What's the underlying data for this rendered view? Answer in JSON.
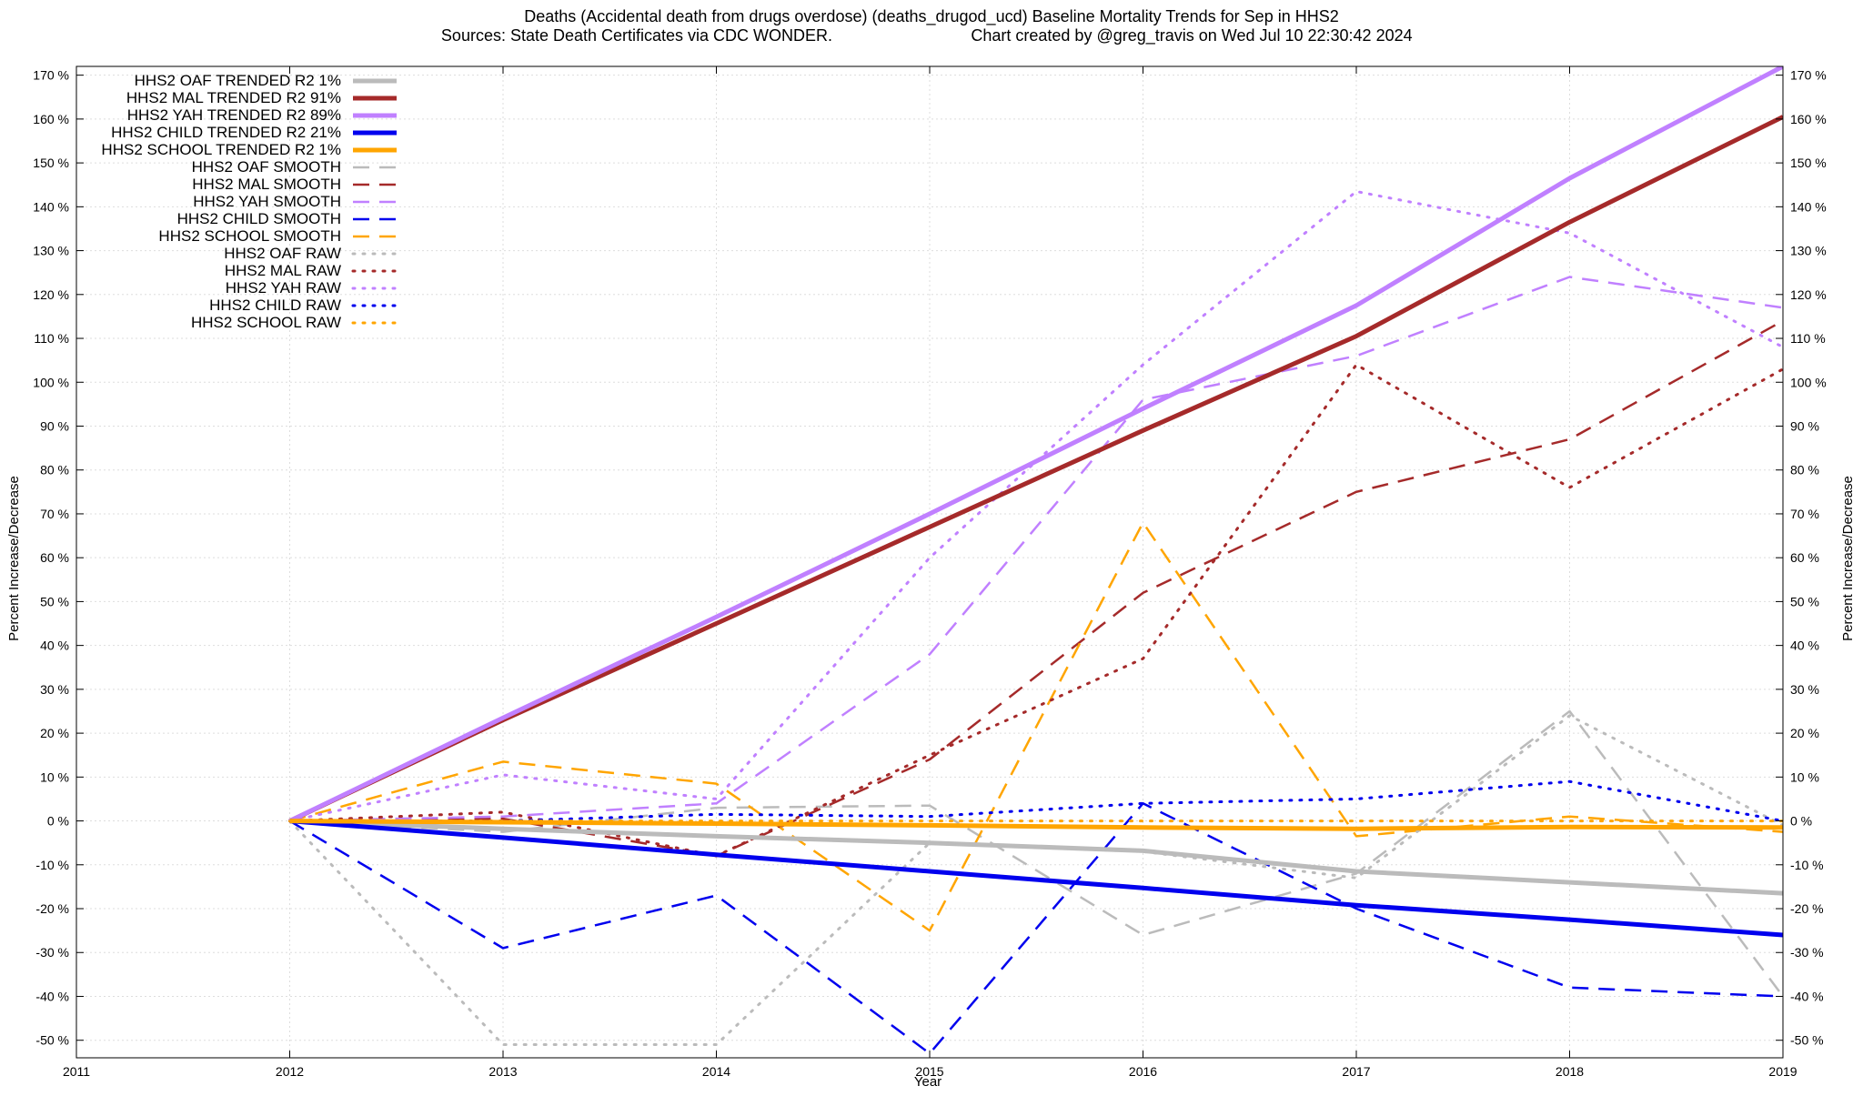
{
  "chart_data": {
    "type": "line",
    "title": "Deaths (Accidental death from drugs overdose) (deaths_drugod_ucd)  Baseline Mortality Trends for Sep in HHS2",
    "subtitle_left": "Sources: State Death Certificates via CDC WONDER.",
    "subtitle_right": "Chart created by @greg_travis on Wed Jul 10 22:30:42 2024",
    "xlabel": "Year",
    "ylabel_left": "Percent Increase/Decrease",
    "ylabel_right": "Percent Increase/Decrease",
    "xlim": [
      2011,
      2019
    ],
    "ylim": [
      -54,
      172
    ],
    "x_ticks": [
      {
        "value": 2011,
        "label": "2011"
      },
      {
        "value": 2012,
        "label": "2012"
      },
      {
        "value": 2013,
        "label": "2013"
      },
      {
        "value": 2014,
        "label": "2014"
      },
      {
        "value": 2015,
        "label": "2015"
      },
      {
        "value": 2016,
        "label": "2016"
      },
      {
        "value": 2017,
        "label": "2017"
      },
      {
        "value": 2018,
        "label": "2018"
      },
      {
        "value": 2019,
        "label": "2019"
      }
    ],
    "y_ticks": [
      {
        "value": 170,
        "label": "170 %"
      },
      {
        "value": 160,
        "label": "160 %"
      },
      {
        "value": 150,
        "label": "150 %"
      },
      {
        "value": 140,
        "label": "140 %"
      },
      {
        "value": 130,
        "label": "130 %"
      },
      {
        "value": 120,
        "label": "120 %"
      },
      {
        "value": 110,
        "label": "110 %"
      },
      {
        "value": 100,
        "label": "100 %"
      },
      {
        "value": 90,
        "label": "90 %"
      },
      {
        "value": 80,
        "label": "80 %"
      },
      {
        "value": 70,
        "label": "70 %"
      },
      {
        "value": 60,
        "label": "60 %"
      },
      {
        "value": 50,
        "label": "50 %"
      },
      {
        "value": 40,
        "label": "40 %"
      },
      {
        "value": 30,
        "label": "30 %"
      },
      {
        "value": 20,
        "label": "20 %"
      },
      {
        "value": 10,
        "label": "10 %"
      },
      {
        "value": 0,
        "label": "0 %"
      },
      {
        "value": -10,
        "label": "-10 %"
      },
      {
        "value": -20,
        "label": "-20 %"
      },
      {
        "value": -30,
        "label": "-30 %"
      },
      {
        "value": -40,
        "label": "-40 %"
      },
      {
        "value": -50,
        "label": "-50 %"
      }
    ],
    "grid": true,
    "legend_position": "top-left",
    "series": [
      {
        "name": "HHS2 OAF TRENDED R2  1%",
        "style": "trend",
        "color": "#bbbbbb",
        "x": [
          2012,
          2013,
          2014,
          2015,
          2016,
          2017,
          2018,
          2019
        ],
        "values": [
          0,
          -1.8,
          -3.5,
          -5,
          -6.8,
          -11.5,
          -14,
          -16.5
        ]
      },
      {
        "name": "HHS2 MAL TRENDED R2  91%",
        "style": "trend",
        "color": "#a52a2a",
        "x": [
          2012,
          2013,
          2014,
          2015,
          2016,
          2017,
          2018,
          2019
        ],
        "values": [
          0,
          23,
          45,
          67,
          89,
          110.5,
          136.5,
          160.5
        ]
      },
      {
        "name": "HHS2 YAH TRENDED R2  89%",
        "style": "trend",
        "color": "#c080ff",
        "x": [
          2012,
          2013,
          2014,
          2015,
          2016,
          2017,
          2018,
          2019
        ],
        "values": [
          0,
          23.5,
          46.5,
          70,
          94,
          117.5,
          146.5,
          172
        ]
      },
      {
        "name": "HHS2 CHILD TRENDED R2  21%",
        "style": "trend",
        "color": "#0000ee",
        "x": [
          2012,
          2013,
          2014,
          2015,
          2016,
          2017,
          2018,
          2019
        ],
        "values": [
          0,
          -3.8,
          -7.7,
          -11.5,
          -15.3,
          -19.2,
          -22.5,
          -26
        ]
      },
      {
        "name": "HHS2 SCHOOL TRENDED R2  1%",
        "style": "trend",
        "color": "#ffa500",
        "x": [
          2012,
          2013,
          2014,
          2015,
          2016,
          2017,
          2018,
          2019
        ],
        "values": [
          0,
          -0.3,
          -0.6,
          -1,
          -1.5,
          -1.8,
          -1.4,
          -1.5
        ]
      },
      {
        "name": "HHS2 OAF SMOOTH",
        "style": "smooth",
        "color": "#bbbbbb",
        "x": [
          2012,
          2013,
          2014,
          2015,
          2016,
          2017,
          2018,
          2019
        ],
        "values": [
          0,
          -2.5,
          3,
          3.5,
          -26,
          -12,
          25,
          -40
        ]
      },
      {
        "name": "HHS2 MAL SMOOTH",
        "style": "smooth",
        "color": "#a52a2a",
        "x": [
          2012,
          2013,
          2014,
          2015,
          2016,
          2017,
          2018,
          2019
        ],
        "values": [
          0,
          0.5,
          -8,
          14,
          52,
          75,
          87,
          114
        ]
      },
      {
        "name": "HHS2 YAH SMOOTH",
        "style": "smooth",
        "color": "#c080ff",
        "x": [
          2012,
          2013,
          2014,
          2015,
          2016,
          2017,
          2018,
          2019
        ],
        "values": [
          0,
          1,
          4,
          38,
          96,
          106,
          124,
          117
        ]
      },
      {
        "name": "HHS2 CHILD SMOOTH",
        "style": "smooth",
        "color": "#0000ee",
        "x": [
          2012,
          2013,
          2014,
          2015,
          2016,
          2017,
          2018,
          2019
        ],
        "values": [
          0,
          -29,
          -17,
          -53,
          4,
          -20,
          -38,
          -40
        ]
      },
      {
        "name": "HHS2 SCHOOL SMOOTH",
        "style": "smooth",
        "color": "#ffa500",
        "x": [
          2012,
          2013,
          2014,
          2015,
          2016,
          2017,
          2018,
          2019
        ],
        "values": [
          0,
          13.5,
          8.5,
          -25,
          68,
          -3.5,
          1,
          -2.5
        ]
      },
      {
        "name": "HHS2 OAF RAW",
        "style": "raw",
        "color": "#bbbbbb",
        "x": [
          2012,
          2013,
          2014,
          2015,
          2016,
          2017,
          2018,
          2019
        ],
        "values": [
          0,
          -51,
          -51,
          -5,
          -7,
          -13,
          24,
          -1
        ]
      },
      {
        "name": "HHS2 MAL RAW",
        "style": "raw",
        "color": "#a52a2a",
        "x": [
          2012,
          2013,
          2014,
          2015,
          2016,
          2017,
          2018,
          2019
        ],
        "values": [
          0,
          2,
          -8,
          15,
          37,
          104,
          76,
          103
        ]
      },
      {
        "name": "HHS2 YAH RAW",
        "style": "raw",
        "color": "#c080ff",
        "x": [
          2012,
          2013,
          2014,
          2015,
          2016,
          2017,
          2018,
          2019
        ],
        "values": [
          0,
          10.5,
          5,
          60,
          104,
          143.5,
          134,
          108
        ]
      },
      {
        "name": "HHS2 CHILD RAW",
        "style": "raw",
        "color": "#0000ee",
        "x": [
          2012,
          2013,
          2014,
          2015,
          2016,
          2017,
          2018,
          2019
        ],
        "values": [
          0,
          0,
          1.5,
          1,
          4,
          5,
          9,
          0
        ]
      },
      {
        "name": "HHS2 SCHOOL RAW",
        "style": "raw",
        "color": "#ffa500",
        "x": [
          2012,
          2013,
          2014,
          2015,
          2016,
          2017,
          2018,
          2019
        ],
        "values": [
          0,
          0,
          0,
          0,
          0,
          0,
          0,
          0
        ]
      }
    ]
  }
}
